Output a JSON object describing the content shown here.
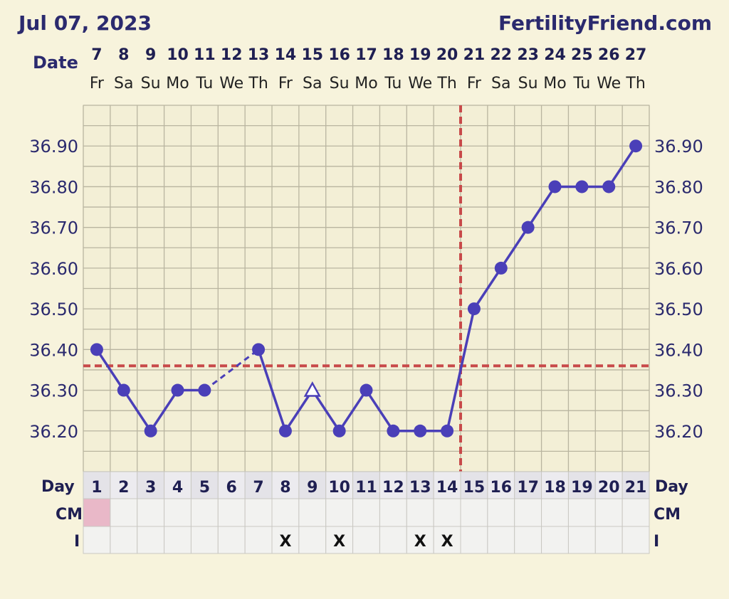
{
  "header": {
    "date": "Jul 07, 2023",
    "site": "FertilityFriend.com",
    "date_label": "Date",
    "day_label": "Day",
    "cm_label": "CM",
    "i_label": "I"
  },
  "colors": {
    "background": "#f7f3dc",
    "line": "#4a3fb8",
    "grid": "#b9b5a0",
    "coverline": "#c84a4a",
    "text": "#2b2a6e",
    "cm_pink": "#e9b8c8"
  },
  "chart_data": {
    "type": "line",
    "title": "",
    "ylim": [
      36.1,
      37.0
    ],
    "y_ticks": [
      "36.20",
      "36.30",
      "36.40",
      "36.50",
      "36.60",
      "36.70",
      "36.80",
      "36.90"
    ],
    "dates": [
      "7",
      "8",
      "9",
      "10",
      "11",
      "12",
      "13",
      "14",
      "15",
      "16",
      "17",
      "18",
      "19",
      "20",
      "21",
      "22",
      "23",
      "24",
      "25",
      "26",
      "27"
    ],
    "weekdays": [
      "Fr",
      "Sa",
      "Su",
      "Mo",
      "Tu",
      "We",
      "Th",
      "Fr",
      "Sa",
      "Su",
      "Mo",
      "Tu",
      "We",
      "Th",
      "Fr",
      "Sa",
      "Su",
      "Mo",
      "Tu",
      "We",
      "Th"
    ],
    "cycle_days": [
      "1",
      "2",
      "3",
      "4",
      "5",
      "6",
      "7",
      "8",
      "9",
      "10",
      "11",
      "12",
      "13",
      "14",
      "15",
      "16",
      "17",
      "18",
      "19",
      "20",
      "21"
    ],
    "temperatures": [
      36.4,
      36.3,
      36.2,
      36.3,
      36.3,
      null,
      36.4,
      36.2,
      36.3,
      36.2,
      36.3,
      36.2,
      36.2,
      36.2,
      36.5,
      36.6,
      36.7,
      36.8,
      36.8,
      36.8,
      36.9
    ],
    "discarded_days": [
      9
    ],
    "dashed_gap_segment": [
      5,
      7
    ],
    "coverline_temp": 36.36,
    "ovulation_day": 14,
    "intercourse_days": [
      8,
      10,
      13,
      14
    ],
    "intercourse_marker": "X",
    "cm_days": [
      1
    ],
    "grid": true
  }
}
